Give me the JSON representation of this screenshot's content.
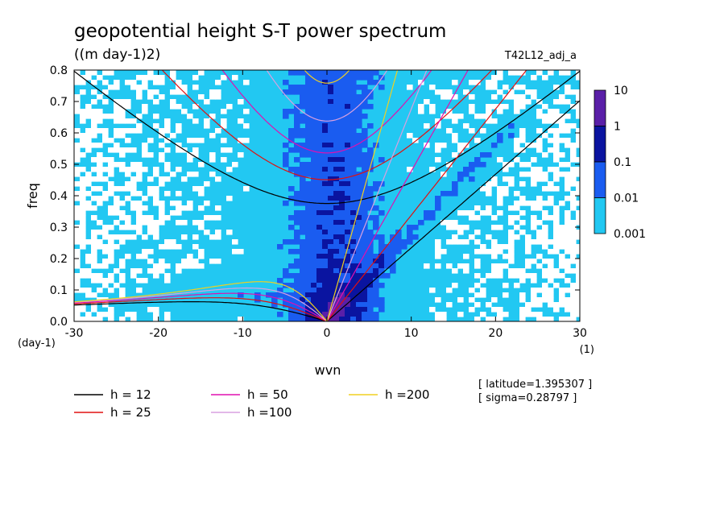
{
  "chart_data": {
    "type": "heatmap",
    "title": "geopotential height S-T power spectrum",
    "units": "((m day-1)2)",
    "run_label": "T42L12_adj_a",
    "xlabel": "wvn",
    "ylabel": "freq",
    "x_unit": "(1)",
    "y_unit": "(day-1)",
    "xlim": [
      -30,
      30
    ],
    "ylim": [
      0,
      0.8
    ],
    "x_ticks": [
      "-30",
      "-20",
      "-10",
      "0",
      "10",
      "20",
      "30"
    ],
    "y_ticks": [
      "0.0",
      "0.1",
      "0.2",
      "0.3",
      "0.4",
      "0.5",
      "0.6",
      "0.7",
      "0.8"
    ],
    "colorbar": {
      "levels": [
        "10",
        "1",
        "0.1",
        "0.01",
        "0.001"
      ],
      "colors": [
        "#5a1fa8",
        "#0a14a0",
        "#1a5cf0",
        "#22c8f2",
        "#ffffff"
      ]
    },
    "dispersion_curves": [
      {
        "label": "h = 12",
        "h": 12,
        "color": "#000000"
      },
      {
        "label": "h = 25",
        "h": 25,
        "color": "#e01010"
      },
      {
        "label": "h = 50",
        "h": 50,
        "color": "#e010b0"
      },
      {
        "label": "h =100",
        "h": 100,
        "color": "#d8a0e0"
      },
      {
        "label": "h =200",
        "h": 200,
        "color": "#f0d020"
      }
    ],
    "annotations": [
      "[ latitude=1.395307 ]",
      "[ sigma=0.28797 ]"
    ]
  }
}
